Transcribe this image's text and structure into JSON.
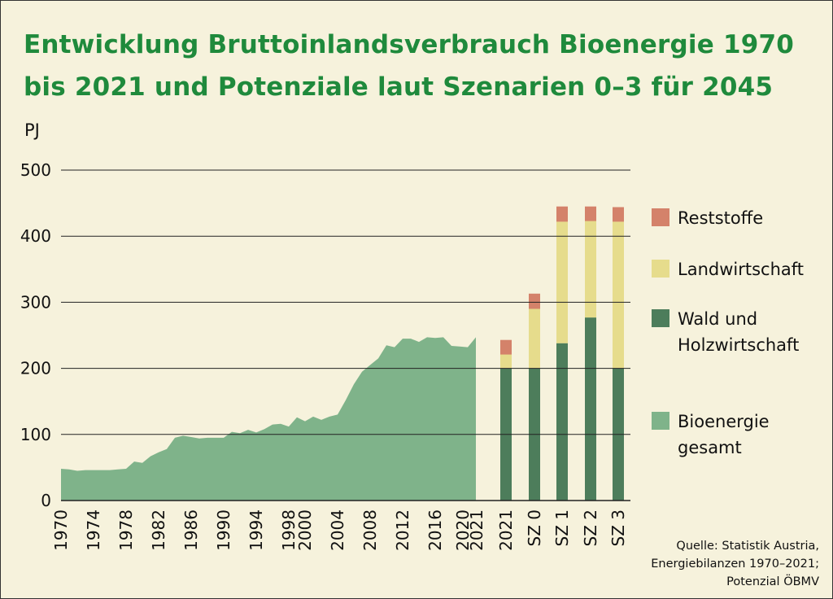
{
  "title_line1": "Entwicklung Bruttoinlandsverbrauch Bioenergie 1970",
  "title_line2": "bis 2021 und Potenziale laut Szenarien 0–3 für 2045",
  "source_lines": [
    "Quelle: Statistik Austria,",
    "Energiebilanzen 1970–2021;",
    "Potenzial ÖBMV"
  ],
  "colors": {
    "background": "#f6f2dc",
    "title": "#1f8a3c",
    "bioenergie": "#7fb38a",
    "wald": "#4d7d5b",
    "landwirtschaft": "#e6dc8c",
    "reststoffe": "#d4826a"
  },
  "chart_data": [
    {
      "type": "area",
      "ylabel": "PJ",
      "ylim": [
        0,
        500
      ],
      "yticks": [
        0,
        100,
        200,
        300,
        400,
        500
      ],
      "xticks": [
        "1970",
        "1974",
        "1978",
        "1982",
        "1986",
        "1990",
        "1994",
        "1998",
        "2000",
        "2004",
        "2008",
        "2012",
        "2016",
        "2020",
        "2021"
      ],
      "grid": true,
      "series": [
        {
          "name": "Bioenergie gesamt",
          "x": [
            1970,
            1971,
            1972,
            1973,
            1974,
            1975,
            1976,
            1977,
            1978,
            1979,
            1980,
            1981,
            1982,
            1983,
            1984,
            1985,
            1986,
            1987,
            1988,
            1989,
            1990,
            1991,
            1992,
            1993,
            1994,
            1995,
            1996,
            1997,
            1998,
            1999,
            2000,
            2001,
            2002,
            2003,
            2004,
            2005,
            2006,
            2007,
            2008,
            2009,
            2010,
            2011,
            2012,
            2013,
            2014,
            2015,
            2016,
            2017,
            2018,
            2019,
            2020,
            2021
          ],
          "y": [
            48,
            47,
            45,
            46,
            46,
            46,
            46,
            47,
            48,
            59,
            57,
            67,
            73,
            78,
            95,
            98,
            96,
            94,
            95,
            95,
            95,
            104,
            102,
            107,
            103,
            108,
            115,
            116,
            112,
            126,
            120,
            127,
            122,
            127,
            130,
            152,
            176,
            195,
            205,
            215,
            235,
            232,
            245,
            245,
            240,
            247,
            246,
            247,
            234,
            233,
            232,
            247
          ]
        }
      ]
    },
    {
      "type": "bar",
      "stacked": true,
      "categories": [
        "2021",
        "SZ 0",
        "SZ 1",
        "SZ 2",
        "SZ 3"
      ],
      "series": [
        {
          "name": "Wald und Holzwirtschaft",
          "values": [
            200,
            200,
            238,
            277,
            200
          ]
        },
        {
          "name": "Landwirtschaft",
          "values": [
            21,
            90,
            184,
            146,
            222
          ]
        },
        {
          "name": "Reststoffe",
          "values": [
            22,
            23,
            23,
            22,
            22
          ]
        }
      ]
    }
  ],
  "legend": [
    {
      "key": "reststoffe",
      "lines": [
        "Reststoffe"
      ]
    },
    {
      "key": "landwirtschaft",
      "lines": [
        "Landwirtschaft"
      ]
    },
    {
      "key": "wald",
      "lines": [
        "Wald und",
        "Holzwirtschaft"
      ]
    },
    {
      "key": "bioenergie",
      "lines": [
        "Bioenergie",
        "gesamt"
      ]
    }
  ]
}
